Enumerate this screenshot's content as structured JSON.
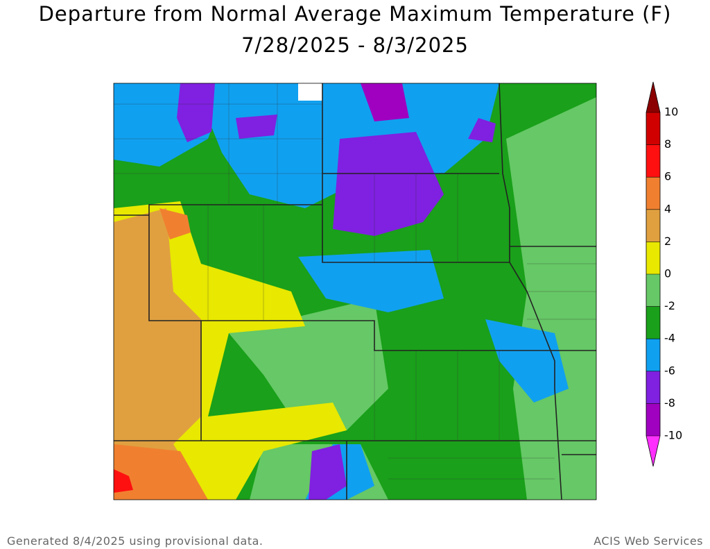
{
  "header": {
    "title": "Departure from Normal Average Maximum Temperature (F)",
    "period": "7/28/2025 - 8/3/2025"
  },
  "legend": {
    "ticks": [
      10,
      8,
      6,
      4,
      2,
      0,
      -2,
      -4,
      -6,
      -8,
      -10
    ],
    "colors": [
      "#8b0000",
      "#d00000",
      "#ff1010",
      "#f08030",
      "#e0a040",
      "#e8e800",
      "#66c866",
      "#1aa01a",
      "#10a0f0",
      "#8020e0",
      "#a000c0",
      "#ff30ff"
    ]
  },
  "footer": {
    "note": "Generated 8/4/2025 using provisional data.",
    "credit": "ACIS Web Services"
  }
}
